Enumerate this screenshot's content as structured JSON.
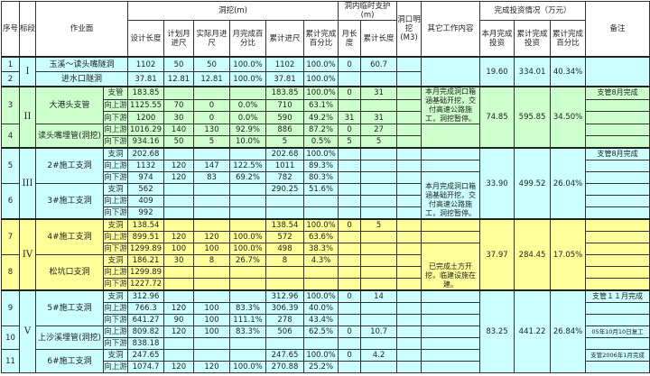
{
  "header": {
    "seq": "序号",
    "section": "标段",
    "workface": "作业面",
    "excavation": "洞挖(m)",
    "design_length": "设计长度",
    "plan_month": "计划月进尺",
    "actual_month": "实际月进尺",
    "month_pct": "月完成百分比",
    "cum_advance": "累计进尺",
    "cum_pct": "累计完成百分比",
    "support": "洞内临时支护(m)",
    "support_month": "月长度",
    "support_cum": "累计长度",
    "portal": "洞口明挖(M3)",
    "other_work": "其它工作内容",
    "investment": "完成投资情况（万元）",
    "inv_month": "本月完成投资",
    "inv_cum": "累计完成投资",
    "inv_pct": "累计完成百分比",
    "note": "备注"
  },
  "colors": {
    "cyan": "#ccffff",
    "green": "#ccffcc",
    "yellow": "#ffff99"
  },
  "sections": [
    {
      "roman": "I",
      "color": "cyan",
      "invest": {
        "month": "19.60",
        "cum": "334.01",
        "pct": "40.34%"
      },
      "other": [
        {
          "text": "",
          "span": 2
        }
      ],
      "items": [
        {
          "seq": "1",
          "name": "玉溪～读头嘴隧洞",
          "subs": [
            {
              "sub": null,
              "design": "1102",
              "plan": "50",
              "actual": "50",
              "mpct": "100.0%",
              "cum": "1102",
              "cumpct": "100.0%",
              "mlen": "0",
              "clen": "60.7",
              "note": ""
            }
          ]
        },
        {
          "seq": "2",
          "name": "进水口隧洞",
          "subs": [
            {
              "sub": null,
              "design": "37.81",
              "plan": "12.81",
              "actual": "12.81",
              "mpct": "100.0%",
              "cum": "37.81",
              "cumpct": "100.0%",
              "mlen": "",
              "clen": "",
              "note": ""
            }
          ]
        }
      ]
    },
    {
      "roman": "II",
      "color": "green",
      "invest": {
        "month": "74.85",
        "cum": "595.85",
        "pct": "34.50%"
      },
      "other": [
        {
          "text": "本月完成洞口箱涵基础开挖，交付高速公路施工，洞挖暂停。",
          "span": 3,
          "align": "top"
        },
        {
          "text": "",
          "span": 2
        }
      ],
      "items": [
        {
          "seq": "3",
          "name": "大港头支管",
          "subs": [
            {
              "sub": "支管",
              "design": "183.85",
              "plan": "",
              "actual": "",
              "mpct": "",
              "cum": "183.85",
              "cumpct": "100.0%",
              "mlen": "0",
              "clen": "31",
              "note": "支管8月完成"
            },
            {
              "sub": "向上游",
              "design": "1125.55",
              "plan": "70",
              "actual": "0",
              "mpct": "0.0%",
              "cum": "710",
              "cumpct": "63.1%",
              "mlen": "",
              "clen": "",
              "note": ""
            },
            {
              "sub": "向下游",
              "design": "1200",
              "plan": "30",
              "actual": "0",
              "mpct": "0.0%",
              "cum": "590",
              "cumpct": "49.2%",
              "mlen": "31",
              "clen": "31",
              "note": ""
            }
          ]
        },
        {
          "seq": "4",
          "name": "读头嘴埋管(洞挖)",
          "subs": [
            {
              "sub": "向上游",
              "design": "1016.29",
              "plan": "140",
              "actual": "130",
              "mpct": "92.9%",
              "cum": "886",
              "cumpct": "87.2%",
              "mlen": "0",
              "clen": "27",
              "note": ""
            },
            {
              "sub": "向下游",
              "design": "934.16",
              "plan": "50",
              "actual": "5",
              "mpct": "10.0%",
              "cum": "5",
              "cumpct": "0.5%",
              "mlen": "5",
              "clen": "5",
              "note": ""
            }
          ]
        }
      ]
    },
    {
      "roman": "III",
      "color": "cyan",
      "invest": {
        "month": "33.90",
        "cum": "499.52",
        "pct": "26.04%"
      },
      "other": [
        {
          "text": "",
          "span": 1
        },
        {
          "text": "",
          "span": 1
        },
        {
          "text": "本月完成洞口箱涵基础开挖，交付高速公路施工，洞挖暂停。",
          "span": 4,
          "align": "bottom"
        }
      ],
      "items": [
        {
          "seq": "5",
          "name": "2#施工支洞",
          "subs": [
            {
              "sub": "支洞",
              "design": "202.68",
              "plan": "",
              "actual": "",
              "mpct": "",
              "cum": "202.68",
              "cumpct": "100.0%",
              "mlen": "",
              "clen": "",
              "note": "支管8月完成"
            },
            {
              "sub": "向上游",
              "design": "1132",
              "plan": "120",
              "actual": "147",
              "mpct": "122.5%",
              "cum": "1011",
              "cumpct": "89.3%",
              "mlen": "",
              "clen": "",
              "note": ""
            },
            {
              "sub": "向下游",
              "design": "974",
              "plan": "120",
              "actual": "83",
              "mpct": "69.2%",
              "cum": "782",
              "cumpct": "80.3%",
              "mlen": "",
              "clen": "",
              "note": ""
            }
          ]
        },
        {
          "seq": "6",
          "name": "3#施工支洞",
          "subs": [
            {
              "sub": "支洞",
              "design": "562",
              "plan": "",
              "actual": "",
              "mpct": "",
              "cum": "290.25",
              "cumpct": "51.6%",
              "mlen": "",
              "clen": "",
              "note": ""
            },
            {
              "sub": "向上游",
              "design": "409",
              "plan": "",
              "actual": "",
              "mpct": "",
              "cum": "",
              "cumpct": "",
              "mlen": "",
              "clen": "",
              "note": ""
            },
            {
              "sub": "向下游",
              "design": "992",
              "plan": "",
              "actual": "",
              "mpct": "",
              "cum": "",
              "cumpct": "",
              "mlen": "",
              "clen": "",
              "note": ""
            }
          ]
        }
      ]
    },
    {
      "roman": "IV",
      "color": "yellow",
      "invest": {
        "month": "37.97",
        "cum": "284.45",
        "pct": "17.05%"
      },
      "other": [
        {
          "text": "",
          "span": 1
        },
        {
          "text": "",
          "span": 1
        },
        {
          "text": "已完成土方开挖，临建设施在建。",
          "span": 4,
          "align": "bottom"
        }
      ],
      "items": [
        {
          "seq": "7",
          "name": "4#施工支洞",
          "subs": [
            {
              "sub": "支洞",
              "design": "138.54",
              "plan": "",
              "actual": "",
              "mpct": "",
              "cum": "138.54",
              "cumpct": "100.0%",
              "mlen": "0",
              "clen": "5",
              "note": ""
            },
            {
              "sub": "向上游",
              "design": "899.51",
              "plan": "120",
              "actual": "120",
              "mpct": "100.0%",
              "cum": "572",
              "cumpct": "63.6%",
              "mlen": "",
              "clen": "",
              "note": ""
            },
            {
              "sub": "向下游",
              "design": "1299.89",
              "plan": "100",
              "actual": "100",
              "mpct": "100.0%",
              "cum": "498",
              "cumpct": "38.3%",
              "mlen": "",
              "clen": "",
              "note": ""
            }
          ]
        },
        {
          "seq": "8",
          "name": "松坑口支洞",
          "subs": [
            {
              "sub": "支洞",
              "design": "186.21",
              "plan": "30",
              "actual": "8",
              "mpct": "26.7%",
              "cum": "8",
              "cumpct": "4.3%",
              "mlen": "",
              "clen": "",
              "note": ""
            },
            {
              "sub": "向上游",
              "design": "1299.89",
              "plan": "",
              "actual": "",
              "mpct": "",
              "cum": "",
              "cumpct": "",
              "mlen": "",
              "clen": "",
              "note": ""
            },
            {
              "sub": "向下游",
              "design": "1227.72",
              "plan": "",
              "actual": "",
              "mpct": "",
              "cum": "",
              "cumpct": "",
              "mlen": "",
              "clen": "",
              "note": ""
            }
          ]
        }
      ]
    },
    {
      "roman": "V",
      "color": "cyan",
      "invest": {
        "month": "83.25",
        "cum": "441.22",
        "pct": "26.84%"
      },
      "other": [
        {
          "text": "",
          "span": 1
        },
        {
          "text": "",
          "span": 1
        },
        {
          "text": "",
          "span": 1
        },
        {
          "text": "",
          "span": 1
        },
        {
          "text": "",
          "span": 1
        },
        {
          "text": "",
          "span": 1
        },
        {
          "text": "",
          "span": 1
        }
      ],
      "items": [
        {
          "seq": "9",
          "name": "5#施工支洞",
          "subs": [
            {
              "sub": "支洞",
              "design": "312.96",
              "plan": "",
              "actual": "",
              "mpct": "",
              "cum": "312.96",
              "cumpct": "100.0%",
              "mlen": "0",
              "clen": "14",
              "note": "支管１１月完成"
            },
            {
              "sub": "向上游",
              "design": "766.3",
              "plan": "120",
              "actual": "100",
              "mpct": "83.3%",
              "cum": "306.39",
              "cumpct": "40.0%",
              "mlen": "",
              "clen": "",
              "note": ""
            },
            {
              "sub": "向下游",
              "design": "641.27",
              "plan": "90",
              "actual": "100",
              "mpct": "111.1%",
              "cum": "278",
              "cumpct": "43.4%",
              "mlen": "",
              "clen": "",
              "note": ""
            }
          ]
        },
        {
          "seq": "10",
          "name": "上沙溪埋管(洞挖)",
          "subs": [
            {
              "sub": "向上游",
              "design": "809.82",
              "plan": "120",
              "actual": "100",
              "mpct": "83.3%",
              "cum": "506",
              "cumpct": "62.5%",
              "mlen": "0",
              "clen": "10.7",
              "note": "05年10月10日复工"
            },
            {
              "sub": "向下游",
              "design": "838.18",
              "plan": "",
              "actual": "",
              "mpct": "",
              "cum": "",
              "cumpct": "",
              "mlen": "",
              "clen": "",
              "note": ""
            }
          ]
        },
        {
          "seq": "11",
          "name": "6#施工支洞",
          "subs": [
            {
              "sub": "支洞",
              "design": "247.65",
              "plan": "",
              "actual": "",
              "mpct": "",
              "cum": "247.65",
              "cumpct": "100.0%",
              "mlen": "0",
              "clen": "4.2",
              "note": "支管2006年1月完成"
            },
            {
              "sub": "向上游",
              "design": "1074.7",
              "plan": "120",
              "actual": "120",
              "mpct": "100.0%",
              "cum": "270.88",
              "cumpct": "25.2%",
              "mlen": "",
              "clen": "",
              "note": ""
            }
          ]
        }
      ]
    }
  ]
}
